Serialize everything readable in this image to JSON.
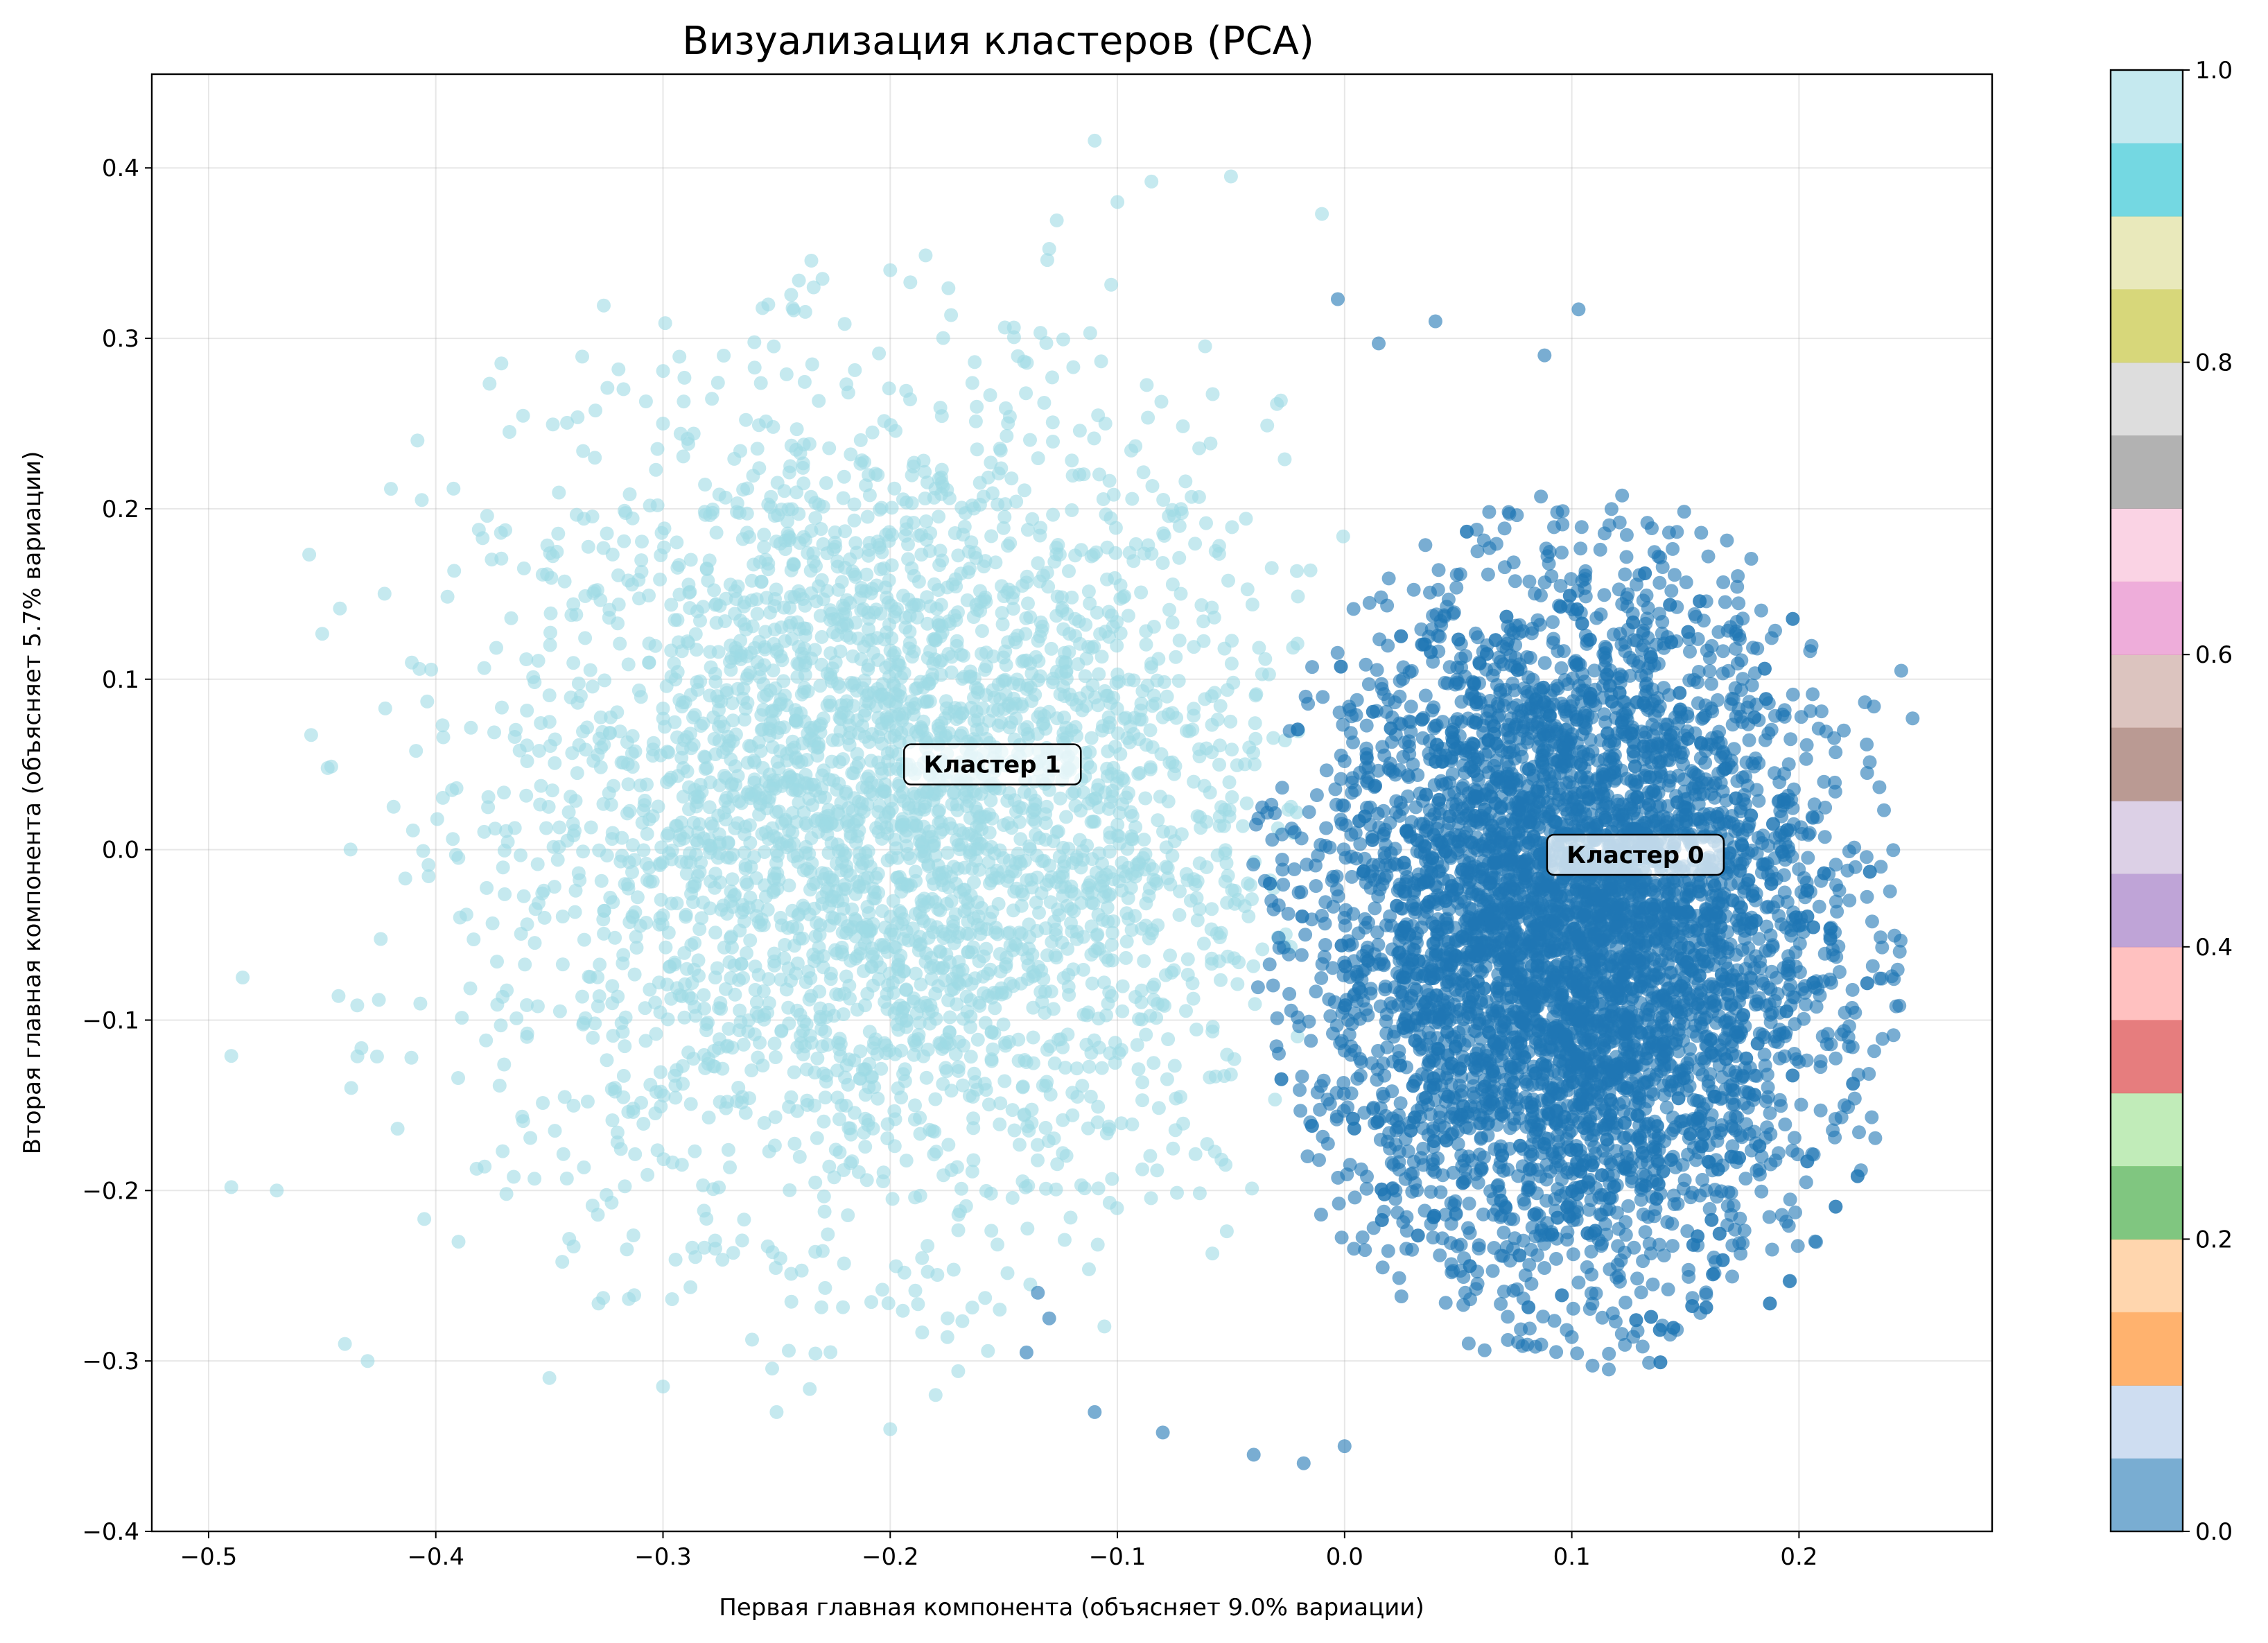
{
  "chart_data": {
    "type": "scatter",
    "title": "Визуализация кластеров (PCA)",
    "xlabel": "Первая главная компонента (объясняет 9.0% вариации)",
    "ylabel": "Вторая главная компонента (объясняет 5.7% вариации)",
    "xlim": [
      -0.525,
      0.285
    ],
    "ylim": [
      -0.4,
      0.455
    ],
    "xticks": [
      -0.5,
      -0.4,
      -0.3,
      -0.2,
      -0.1,
      0.0,
      0.1,
      0.2
    ],
    "xtick_labels": [
      "−0.5",
      "−0.4",
      "−0.3",
      "−0.2",
      "−0.1",
      "0.0",
      "0.1",
      "0.2"
    ],
    "yticks": [
      -0.4,
      -0.3,
      -0.2,
      -0.1,
      0.0,
      0.1,
      0.2,
      0.3,
      0.4
    ],
    "ytick_labels": [
      "−0.4",
      "−0.3",
      "−0.2",
      "−0.1",
      "0.0",
      "0.1",
      "0.2",
      "0.3",
      "0.4"
    ],
    "grid": true,
    "colormap": "tab20",
    "colorbar": {
      "range": [
        0.0,
        1.0
      ],
      "ticks": [
        0.0,
        0.2,
        0.4,
        0.6,
        0.8,
        1.0
      ],
      "tick_labels": [
        "0.0",
        "0.2",
        "0.4",
        "0.6",
        "0.8",
        "1.0"
      ],
      "colors": [
        "#1f77b4",
        "#aec7e8",
        "#ff7f0e",
        "#ffbb78",
        "#2ca02c",
        "#98df8a",
        "#d62728",
        "#ff9896",
        "#9467bd",
        "#c5b0d5",
        "#8c564b",
        "#c49c94",
        "#e377c2",
        "#f7b6d2",
        "#7f7f7f",
        "#c7c7c7",
        "#bcbd22",
        "#dbdb8d",
        "#17becf",
        "#9edae5"
      ]
    },
    "series": [
      {
        "name": "Кластер 0",
        "color": "#1f77b4",
        "center": [
          0.1,
          -0.05
        ],
        "spread": [
          0.055,
          0.1
        ],
        "x_range": [
          -0.14,
          0.25
        ],
        "y_range": [
          -0.36,
          0.32
        ],
        "points": [
          [
            0.103,
            0.317
          ],
          [
            0.088,
            0.29
          ],
          [
            -0.003,
            0.323
          ],
          [
            0.04,
            0.31
          ],
          [
            0.015,
            0.297
          ],
          [
            0.245,
            0.105
          ],
          [
            0.25,
            0.077
          ],
          [
            0.232,
            -0.157
          ],
          [
            0.196,
            -0.253
          ],
          [
            0.1,
            -0.286
          ],
          [
            -0.018,
            -0.36
          ],
          [
            0.0,
            -0.35
          ],
          [
            -0.04,
            -0.355
          ],
          [
            -0.11,
            -0.33
          ],
          [
            -0.13,
            -0.275
          ],
          [
            -0.14,
            -0.295
          ],
          [
            -0.08,
            -0.342
          ],
          [
            -0.135,
            -0.26
          ],
          [
            0.236,
            -0.01
          ],
          [
            0.23,
            0.045
          ]
        ],
        "count_approx": 5500
      },
      {
        "name": "Кластер 1",
        "color": "#9edae5",
        "center": [
          -0.2,
          0.02
        ],
        "spread": [
          0.085,
          0.12
        ],
        "x_range": [
          -0.49,
          0.0
        ],
        "y_range": [
          -0.34,
          0.42
        ],
        "points": [
          [
            -0.11,
            0.416
          ],
          [
            -0.05,
            0.395
          ],
          [
            -0.085,
            0.392
          ],
          [
            -0.01,
            0.373
          ],
          [
            -0.1,
            0.38
          ],
          [
            -0.485,
            -0.075
          ],
          [
            -0.49,
            -0.121
          ],
          [
            -0.49,
            -0.198
          ],
          [
            -0.47,
            -0.2
          ],
          [
            -0.44,
            -0.29
          ],
          [
            -0.43,
            -0.3
          ],
          [
            -0.39,
            -0.23
          ],
          [
            -0.35,
            -0.31
          ],
          [
            -0.3,
            -0.315
          ],
          [
            -0.2,
            -0.34
          ],
          [
            -0.25,
            -0.33
          ],
          [
            -0.18,
            -0.32
          ],
          [
            -0.3,
            0.25
          ],
          [
            -0.33,
            0.23
          ],
          [
            -0.2,
            0.34
          ]
        ],
        "count_approx": 3500
      }
    ],
    "annotations": [
      {
        "text": "Кластер 1",
        "x": -0.155,
        "y": 0.05
      },
      {
        "text": "Кластер 0",
        "x": 0.128,
        "y": -0.003
      }
    ]
  }
}
